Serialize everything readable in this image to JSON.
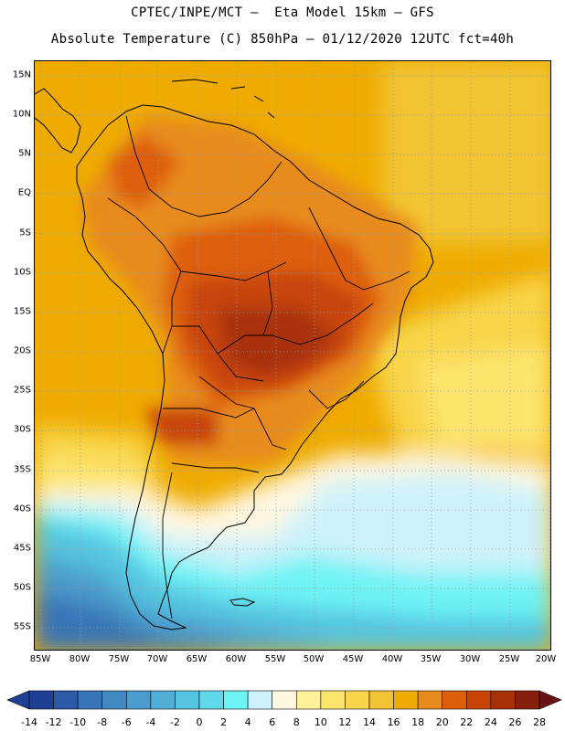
{
  "title_line1": "CPTEC/INPE/MCT —  Eta Model 15km — GFS",
  "title_line2": "Absolute Temperature (C) 850hPa — 01/12/2020 12UTC fct=40h",
  "lat_labels": [
    "15N",
    "10N",
    "5N",
    "EQ",
    "5S",
    "10S",
    "15S",
    "20S",
    "25S",
    "30S",
    "35S",
    "40S",
    "45S",
    "50S",
    "55S"
  ],
  "lon_labels": [
    "85W",
    "80W",
    "75W",
    "70W",
    "65W",
    "60W",
    "55W",
    "50W",
    "45W",
    "40W",
    "35W",
    "30W",
    "25W",
    "20W"
  ],
  "colorbar": {
    "labels": [
      "-14",
      "-12",
      "-10",
      "-8",
      "-6",
      "-4",
      "-2",
      "0",
      "2",
      "4",
      "6",
      "8",
      "10",
      "12",
      "14",
      "16",
      "18",
      "20",
      "22",
      "24",
      "26",
      "28"
    ],
    "colors": [
      "#1d3f94",
      "#2c5aa8",
      "#3775b8",
      "#4289c2",
      "#4b9bcc",
      "#51aed6",
      "#55c4e0",
      "#5fd9ea",
      "#6ef3f5",
      "#cdf2fa",
      "#fff7e0",
      "#fff09a",
      "#fde46d",
      "#f8d54a",
      "#f2c433",
      "#efab00",
      "#e88b1e",
      "#de5f09",
      "#c84507",
      "#a93108",
      "#86200c"
    ]
  },
  "map_colors": {
    "warm_core": "#a93108",
    "hot": "#c84507",
    "orange": "#de5f09",
    "light_orange": "#e88b1e",
    "amber": "#efab00",
    "gold": "#f2c433",
    "yellow": "#fde46d",
    "pale_yellow": "#fff09a",
    "cream": "#fff7e0",
    "ice": "#cdf2fa",
    "cyan": "#6ef3f5",
    "sky": "#55c4e0",
    "blue": "#4289c2",
    "deep_blue": "#3775b8"
  }
}
